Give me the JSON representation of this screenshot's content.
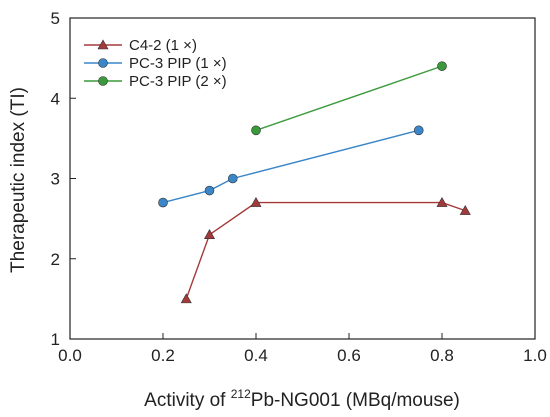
{
  "chart_data": {
    "type": "line",
    "xlabel": {
      "prefix": "Activity of ",
      "superscript": "212",
      "suffix": "Pb-NG001 (MBq/mouse)"
    },
    "ylabel": "Therapeutic index (TI)",
    "xlim": [
      0.0,
      1.0
    ],
    "ylim": [
      1,
      5
    ],
    "x_ticks": [
      "0.0",
      "0.2",
      "0.4",
      "0.6",
      "0.8",
      "1.0"
    ],
    "y_ticks": [
      "1",
      "2",
      "3",
      "4",
      "5"
    ],
    "grid": false,
    "legend_position": "top-left",
    "series": [
      {
        "name": "C4-2 (1 ×)",
        "color": "#a33a3a",
        "marker": "triangle",
        "x": [
          0.25,
          0.3,
          0.4,
          0.8,
          0.85
        ],
        "y": [
          1.5,
          2.3,
          2.7,
          2.7,
          2.6
        ]
      },
      {
        "name": "PC-3 PIP (1 ×)",
        "color": "#3a86c8",
        "marker": "circle",
        "x": [
          0.2,
          0.3,
          0.35,
          0.75
        ],
        "y": [
          2.7,
          2.85,
          3.0,
          3.6
        ]
      },
      {
        "name": "PC-3 PIP (2 ×)",
        "color": "#3a9a3a",
        "marker": "circle",
        "x": [
          0.4,
          0.8
        ],
        "y": [
          3.6,
          4.4
        ]
      }
    ]
  }
}
